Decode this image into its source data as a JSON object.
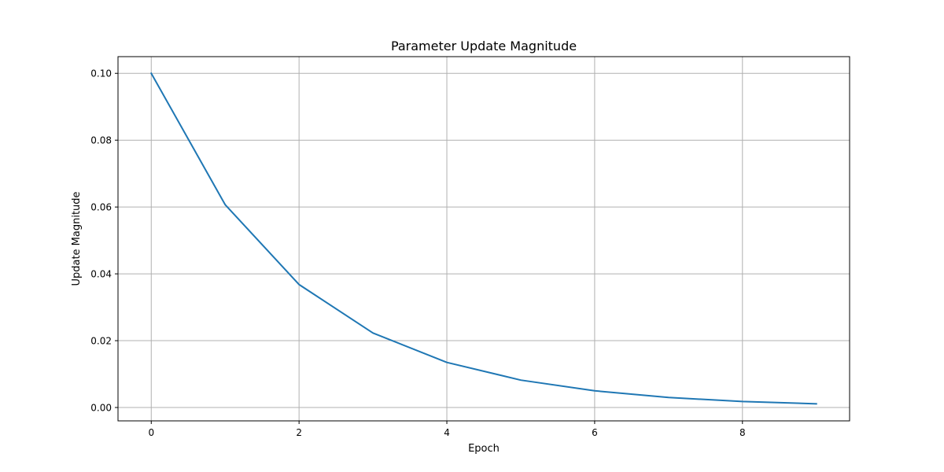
{
  "chart_data": {
    "type": "line",
    "title": "Parameter Update Magnitude",
    "xlabel": "Epoch",
    "ylabel": "Update Magnitude",
    "x": [
      0,
      1,
      2,
      3,
      4,
      5,
      6,
      7,
      8,
      9
    ],
    "series": [
      {
        "values": [
          0.1,
          0.0607,
          0.0368,
          0.0223,
          0.0135,
          0.0082,
          0.005,
          0.003,
          0.0018,
          0.0011
        ],
        "color": "#1f77b4"
      }
    ],
    "xlim": [
      -0.45,
      9.45
    ],
    "ylim": [
      -0.004,
      0.105
    ],
    "xticks": [
      0,
      2,
      4,
      6,
      8
    ],
    "xtick_labels": [
      "0",
      "2",
      "4",
      "6",
      "8"
    ],
    "yticks": [
      0.0,
      0.02,
      0.04,
      0.06,
      0.08,
      0.1
    ],
    "ytick_labels": [
      "0.00",
      "0.02",
      "0.04",
      "0.06",
      "0.08",
      "0.10"
    ],
    "grid": true,
    "legend": false
  }
}
